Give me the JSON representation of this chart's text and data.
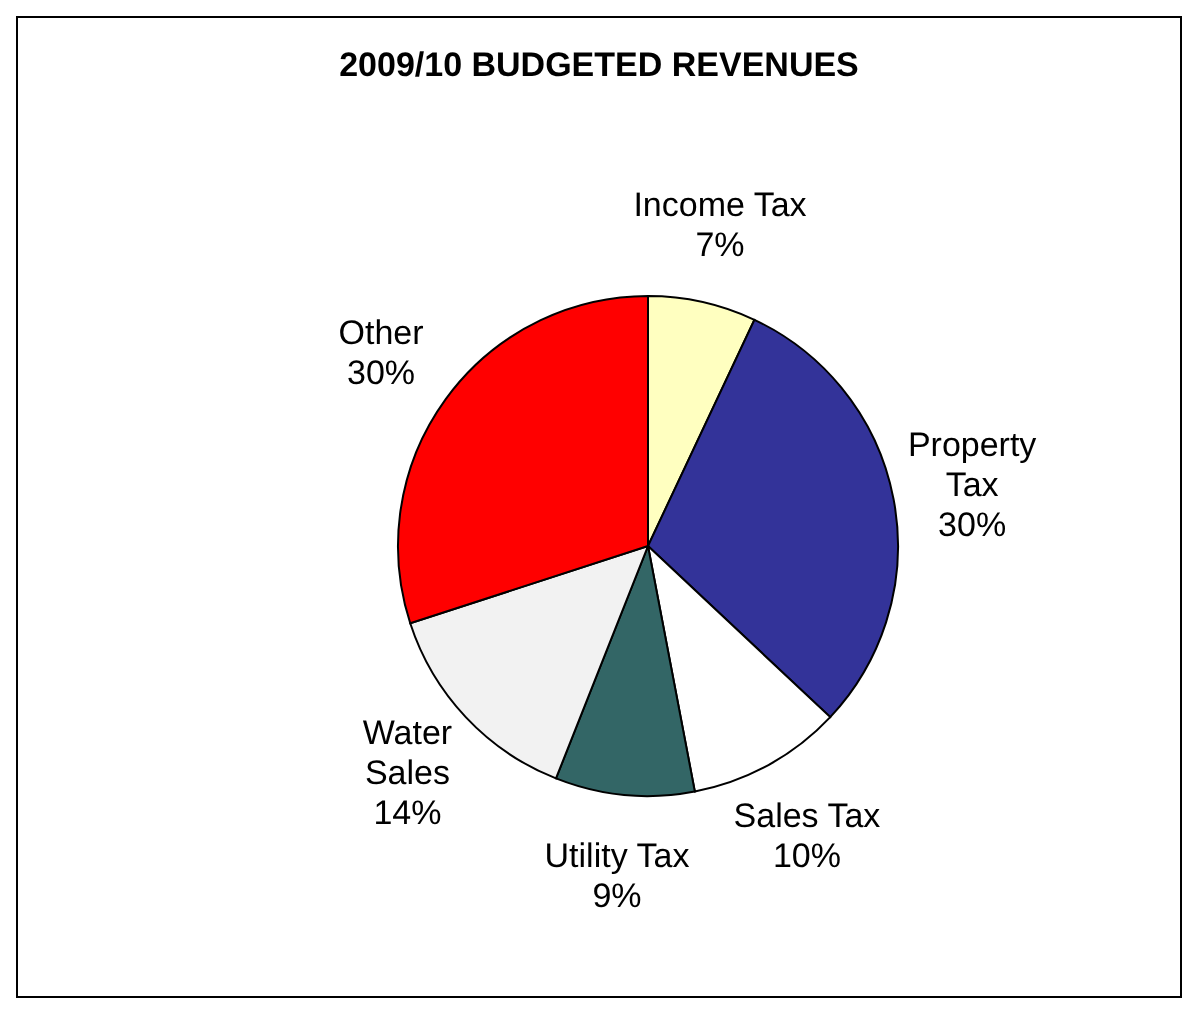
{
  "chart_data": {
    "type": "pie",
    "title": "2009/10 BUDGETED REVENUES",
    "categories": [
      "Income Tax",
      "Property\nTax",
      "Sales Tax",
      "Utility Tax",
      "Water\nSales",
      "Other"
    ],
    "values": [
      7,
      30,
      10,
      9,
      14,
      30
    ],
    "value_labels": [
      "7%",
      "30%",
      "10%",
      "9%",
      "14%",
      "30%"
    ],
    "colors": [
      "#ffffc0",
      "#333399",
      "#ffffff",
      "#336666",
      "#f2f2f2",
      "#ff0000"
    ]
  }
}
